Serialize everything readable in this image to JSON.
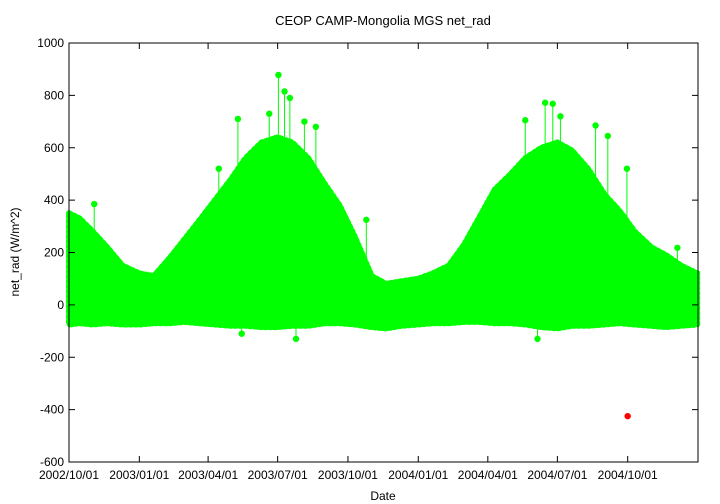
{
  "chart_data": {
    "type": "scatter",
    "title": "CEOP CAMP-Mongolia MGS  net_rad",
    "xlabel": "Date",
    "ylabel": "net_rad (W/m^2)",
    "ylim": [
      -600,
      1000
    ],
    "xlim": [
      "2002-10-01",
      "2005-01-01"
    ],
    "x_tick_labels": [
      "2002/10/01",
      "2003/01/01",
      "2003/04/01",
      "2003/07/01",
      "2003/10/01",
      "2004/01/01",
      "2004/04/01",
      "2004/07/01",
      "2004/10/01"
    ],
    "y_ticks": [
      -600,
      -400,
      -200,
      0,
      200,
      400,
      600,
      800,
      1000
    ],
    "grid": false,
    "series": [
      {
        "color": "#00ff00",
        "style": "linespoints",
        "envelope": {
          "x": [
            "2002-10-01",
            "2002-10-15",
            "2002-11-01",
            "2002-11-20",
            "2002-12-10",
            "2003-01-01",
            "2003-01-20",
            "2003-02-10",
            "2003-03-01",
            "2003-03-20",
            "2003-04-10",
            "2003-05-01",
            "2003-05-20",
            "2003-06-10",
            "2003-07-01",
            "2003-07-20",
            "2003-08-10",
            "2003-09-01",
            "2003-09-20",
            "2003-10-10",
            "2003-11-01",
            "2003-11-20",
            "2003-12-10",
            "2004-01-01",
            "2004-01-20",
            "2004-02-10",
            "2004-03-01",
            "2004-03-20",
            "2004-04-10",
            "2004-05-01",
            "2004-05-20",
            "2004-06-10",
            "2004-07-01",
            "2004-07-20",
            "2004-08-10",
            "2004-09-01",
            "2004-09-20",
            "2004-10-10",
            "2004-11-01",
            "2004-11-20",
            "2004-12-10",
            "2004-12-31"
          ],
          "upper": [
            350,
            330,
            280,
            220,
            150,
            120,
            110,
            180,
            250,
            320,
            400,
            480,
            560,
            620,
            640,
            620,
            560,
            460,
            380,
            260,
            110,
            80,
            90,
            100,
            120,
            150,
            230,
            330,
            440,
            500,
            560,
            600,
            620,
            590,
            520,
            420,
            360,
            280,
            220,
            190,
            150,
            120
          ],
          "lower": [
            -75,
            -70,
            -75,
            -70,
            -75,
            -75,
            -70,
            -70,
            -65,
            -70,
            -75,
            -80,
            -80,
            -85,
            -85,
            -80,
            -80,
            -70,
            -70,
            -75,
            -85,
            -90,
            -80,
            -75,
            -70,
            -70,
            -65,
            -65,
            -70,
            -70,
            -75,
            -85,
            -90,
            -80,
            -80,
            -75,
            -70,
            -75,
            -80,
            -85,
            -80,
            -75
          ]
        },
        "peaks": [
          {
            "x": "2002-11-03",
            "y": 385
          },
          {
            "x": "2003-07-02",
            "y": 878
          },
          {
            "x": "2003-07-10",
            "y": 815
          },
          {
            "x": "2003-07-17",
            "y": 790
          },
          {
            "x": "2003-05-10",
            "y": 710
          },
          {
            "x": "2003-06-20",
            "y": 730
          },
          {
            "x": "2003-08-05",
            "y": 700
          },
          {
            "x": "2003-08-20",
            "y": 680
          },
          {
            "x": "2003-04-15",
            "y": 520
          },
          {
            "x": "2003-10-25",
            "y": 325
          },
          {
            "x": "2004-06-15",
            "y": 772
          },
          {
            "x": "2004-06-25",
            "y": 768
          },
          {
            "x": "2004-05-20",
            "y": 705
          },
          {
            "x": "2004-07-05",
            "y": 720
          },
          {
            "x": "2004-08-20",
            "y": 685
          },
          {
            "x": "2004-09-05",
            "y": 645
          },
          {
            "x": "2004-09-30",
            "y": 520
          },
          {
            "x": "2004-12-05",
            "y": 218
          },
          {
            "x": "2003-07-25",
            "y": -130
          },
          {
            "x": "2004-06-05",
            "y": -130
          },
          {
            "x": "2003-05-15",
            "y": -110
          }
        ]
      },
      {
        "color": "#ff0000",
        "style": "points",
        "points": [
          {
            "x": "2004-10-01",
            "y": -425
          }
        ]
      }
    ]
  }
}
